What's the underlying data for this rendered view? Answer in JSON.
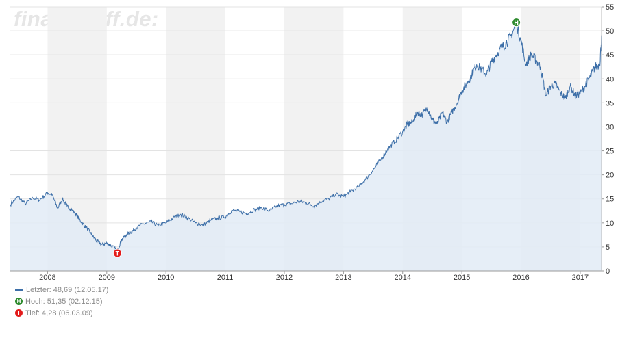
{
  "watermark": "finanztreff.de:",
  "legend": {
    "last": "Letzter: 48,69 (12.05.17)",
    "high": "Hoch: 51,35 (02.12.15)",
    "low": "Tief: 4,28 (06.03.09)",
    "high_marker": "H",
    "low_marker": "T"
  },
  "colors": {
    "line": "#3d6fa8",
    "area": "#e2ebf6",
    "band": "#f2f2f2",
    "high_marker": "#2e8b2e",
    "low_marker": "#e31b1b"
  },
  "chart_data": {
    "type": "area",
    "title": "",
    "xlabel": "",
    "ylabel": "",
    "ylim": [
      0,
      55
    ],
    "y_ticks": [
      0,
      5,
      10,
      15,
      20,
      25,
      30,
      35,
      40,
      45,
      50,
      55
    ],
    "x_ticks": [
      "2008",
      "2009",
      "2010",
      "2011",
      "2012",
      "2013",
      "2014",
      "2015",
      "2016",
      "2017"
    ],
    "x_range": [
      2007.37,
      2017.36
    ],
    "grid": true,
    "shaded_years": [
      "2008",
      "2010",
      "2012",
      "2014",
      "2016"
    ],
    "series": [
      {
        "x": [
          2007.37,
          2007.5,
          2007.62,
          2007.75,
          2007.87,
          2008.0,
          2008.08,
          2008.17,
          2008.25,
          2008.33,
          2008.42,
          2008.5,
          2008.58,
          2008.67,
          2008.75,
          2008.83,
          2008.92,
          2009.0,
          2009.08,
          2009.18,
          2009.25,
          2009.33,
          2009.42,
          2009.5,
          2009.62,
          2009.75,
          2009.87,
          2010.0,
          2010.12,
          2010.25,
          2010.37,
          2010.5,
          2010.62,
          2010.75,
          2010.87,
          2011.0,
          2011.12,
          2011.25,
          2011.37,
          2011.5,
          2011.62,
          2011.75,
          2011.87,
          2012.0,
          2012.12,
          2012.25,
          2012.37,
          2012.5,
          2012.62,
          2012.75,
          2012.87,
          2013.0,
          2013.12,
          2013.25,
          2013.37,
          2013.5,
          2013.62,
          2013.75,
          2013.87,
          2014.0,
          2014.08,
          2014.17,
          2014.25,
          2014.33,
          2014.42,
          2014.5,
          2014.58,
          2014.67,
          2014.75,
          2014.83,
          2014.92,
          2015.0,
          2015.08,
          2015.17,
          2015.25,
          2015.33,
          2015.42,
          2015.5,
          2015.58,
          2015.67,
          2015.75,
          2015.83,
          2015.92,
          2016.0,
          2016.08,
          2016.17,
          2016.25,
          2016.33,
          2016.42,
          2016.5,
          2016.58,
          2016.67,
          2016.75,
          2016.83,
          2016.92,
          2017.0,
          2017.08,
          2017.17,
          2017.25,
          2017.33,
          2017.36
        ],
        "values": [
          13.8,
          15.5,
          14.0,
          15.2,
          14.8,
          16.3,
          15.8,
          13.0,
          15.0,
          13.5,
          12.6,
          11.5,
          10.0,
          8.8,
          7.5,
          6.2,
          5.5,
          5.8,
          5.2,
          4.28,
          6.5,
          7.5,
          8.2,
          9.0,
          9.8,
          10.2,
          9.4,
          10.0,
          11.0,
          11.8,
          11.0,
          10.0,
          9.5,
          10.5,
          11.0,
          11.3,
          12.6,
          12.3,
          12.0,
          12.8,
          13.2,
          12.5,
          13.5,
          13.8,
          14.0,
          14.5,
          14.2,
          13.5,
          14.5,
          15.0,
          16.0,
          15.5,
          16.5,
          17.5,
          19.0,
          21.0,
          23.0,
          25.5,
          27.0,
          29.0,
          30.5,
          31.0,
          33.0,
          32.5,
          34.0,
          31.5,
          30.5,
          33.0,
          31.0,
          33.0,
          35.0,
          37.5,
          39.0,
          41.0,
          43.0,
          42.0,
          41.0,
          43.5,
          45.0,
          46.5,
          47.5,
          49.0,
          51.35,
          48.0,
          43.0,
          45.0,
          44.0,
          42.5,
          36.5,
          38.5,
          39.0,
          37.0,
          36.0,
          38.5,
          36.5,
          37.0,
          38.5,
          40.5,
          42.5,
          43.0,
          48.69
        ]
      }
    ],
    "markers": [
      {
        "label": "H",
        "x": 2015.92,
        "y": 51.35
      },
      {
        "label": "T",
        "x": 2009.18,
        "y": 4.28
      }
    ]
  }
}
